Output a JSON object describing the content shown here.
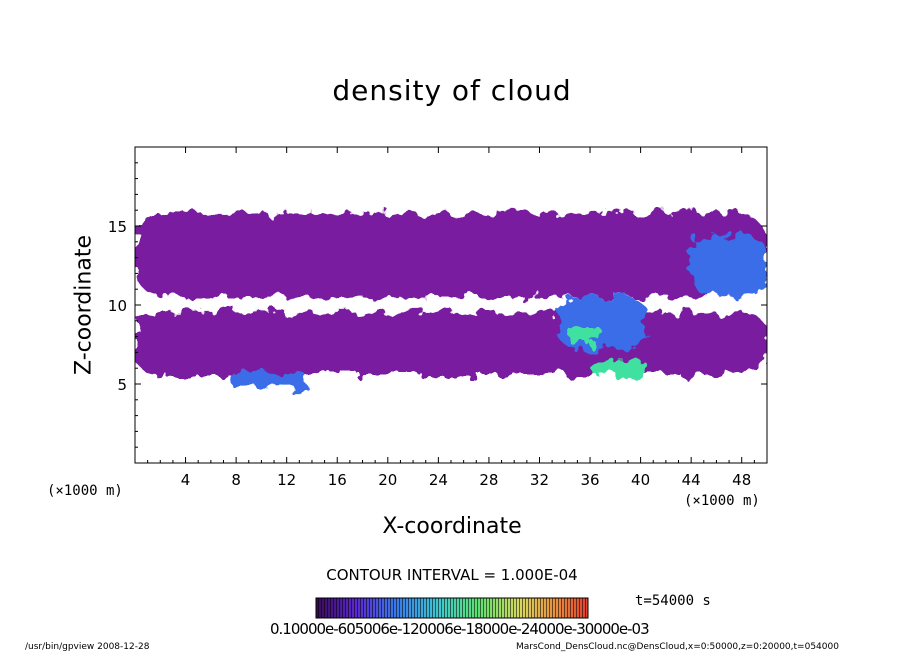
{
  "chart_data": {
    "type": "heatmap",
    "title": "density of cloud",
    "xlabel": "X-coordinate",
    "ylabel": "Z-coordinate",
    "x_unit": "(×1000 m)",
    "y_unit": "(×1000 m)",
    "xlim": [
      0,
      50
    ],
    "ylim": [
      0,
      20
    ],
    "x_ticks": [
      4,
      8,
      12,
      16,
      20,
      24,
      28,
      32,
      36,
      40,
      44,
      48
    ],
    "y_ticks": [
      5,
      10,
      15
    ],
    "contour_interval": "CONTOUR INTERVAL = 1.000E-04",
    "time_label": "t=54000 s",
    "colorbar_labels": "0.10000e-605006e-120006e-18000e-24000e-30000e-03",
    "colors": {
      "low": "#7a1fa0",
      "mid": "#5a3fc8",
      "high": "#3a6de8",
      "peak": "#40e0a0"
    },
    "regions": [
      {
        "x": [
          0,
          50
        ],
        "z": [
          10.5,
          15.8
        ],
        "level": "low"
      },
      {
        "x": [
          0,
          50
        ],
        "z": [
          5.6,
          9.5
        ],
        "level": "low"
      },
      {
        "x": [
          7.5,
          13.5
        ],
        "z": [
          4.8,
          5.8
        ],
        "level": "high"
      },
      {
        "x": [
          33.5,
          40.5
        ],
        "z": [
          7.2,
          10.5
        ],
        "level": "high"
      },
      {
        "x": [
          34.2,
          36.8
        ],
        "z": [
          7.5,
          8.8
        ],
        "level": "peak"
      },
      {
        "x": [
          36.2,
          40.5
        ],
        "z": [
          5.5,
          6.5
        ],
        "level": "peak"
      },
      {
        "x": [
          44,
          50
        ],
        "z": [
          10.5,
          14.5
        ],
        "level": "high"
      }
    ]
  },
  "footer": {
    "left": "/usr/bin/gpview 2008-12-28",
    "right": "MarsCond_DensCloud.nc@DensCloud,x=0:50000,z=0:20000,t=054000"
  }
}
